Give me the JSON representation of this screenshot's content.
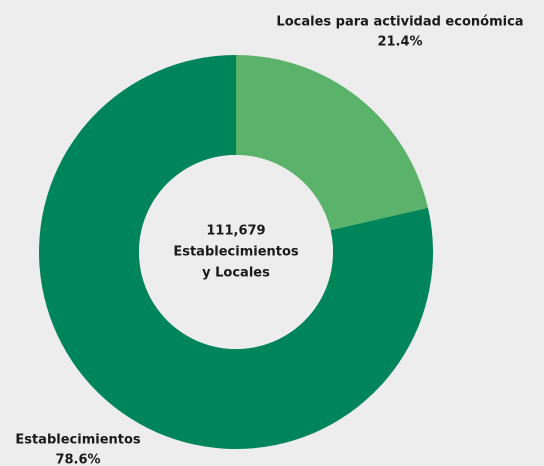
{
  "chart_data": {
    "type": "pie",
    "categories": [
      "Locales para actividad económica",
      "Establecimientos"
    ],
    "values": [
      21.4,
      78.6
    ],
    "value_labels": [
      "21.4%",
      "78.6%"
    ],
    "colors": [
      "#5bb36b",
      "#00845a"
    ],
    "center_text": [
      "111,679",
      "Establecimientos",
      "y Locales"
    ]
  }
}
